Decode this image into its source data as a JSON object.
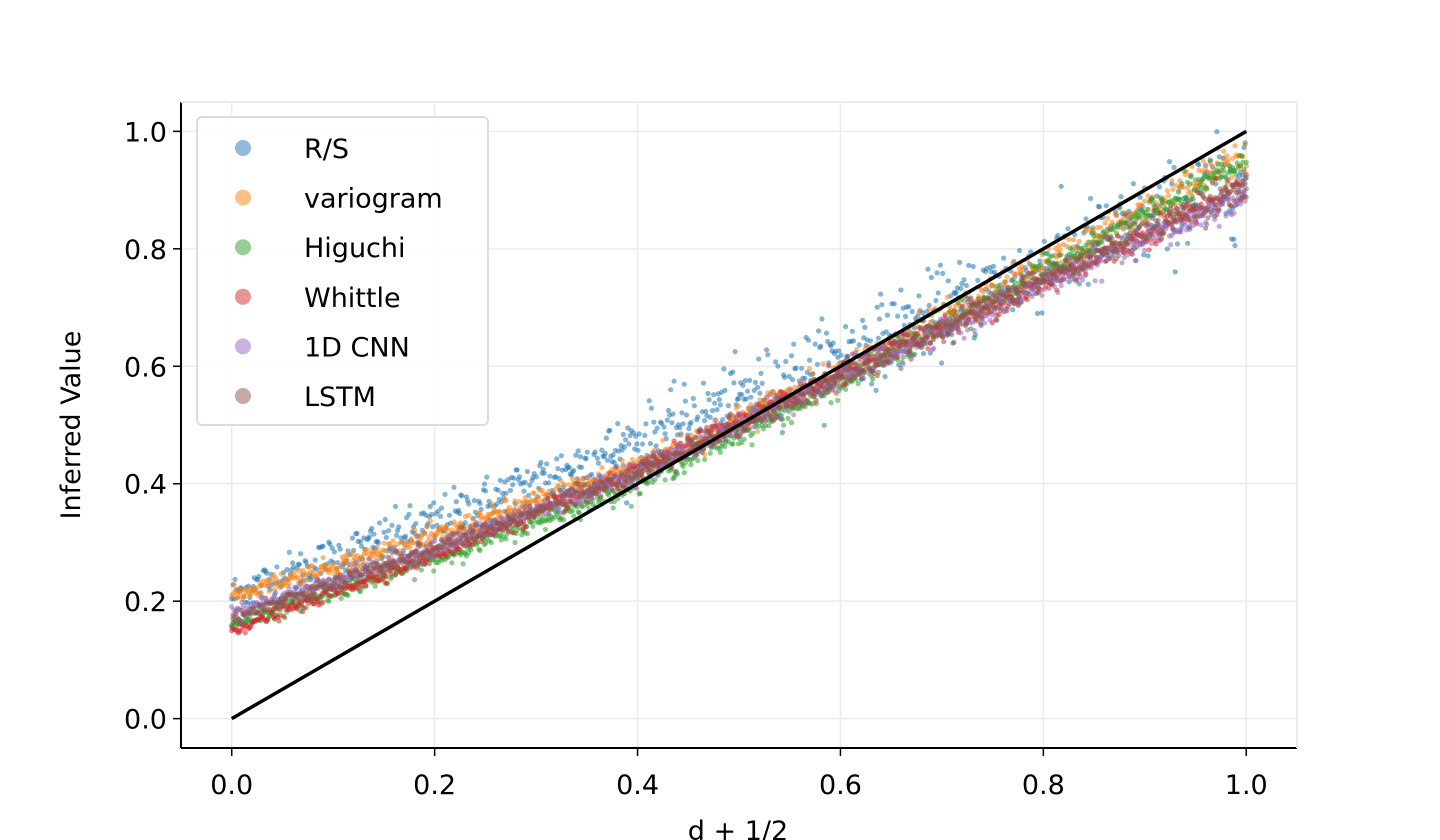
{
  "chart_data": {
    "type": "scatter",
    "title": "",
    "xlabel": "d + 1/2",
    "ylabel": "Inferred Value",
    "xlim": [
      -0.05,
      1.05
    ],
    "ylim": [
      -0.05,
      1.05
    ],
    "xticks": [
      "0.0",
      "0.2",
      "0.4",
      "0.6",
      "0.8",
      "1.0"
    ],
    "yticks": [
      "0.0",
      "0.2",
      "0.4",
      "0.6",
      "0.8",
      "1.0"
    ],
    "grid": true,
    "legend_position": "top-left",
    "reference_line": {
      "x": [
        0,
        1
      ],
      "y": [
        0,
        1
      ],
      "color": "#000000"
    },
    "series": [
      {
        "name": "R/S",
        "color": "#1f77b4",
        "trend": {
          "x": [
            0,
            0.2,
            0.4,
            0.6,
            0.8,
            1.0
          ],
          "y": [
            0.21,
            0.33,
            0.47,
            0.62,
            0.77,
            0.92
          ]
        },
        "spread": 0.03
      },
      {
        "name": "variogram",
        "color": "#ff7f0e",
        "trend": {
          "x": [
            0,
            0.2,
            0.4,
            0.6,
            0.8,
            1.0
          ],
          "y": [
            0.21,
            0.31,
            0.43,
            0.59,
            0.77,
            0.96
          ]
        },
        "spread": 0.012
      },
      {
        "name": "Higuchi",
        "color": "#2ca02c",
        "trend": {
          "x": [
            0,
            0.2,
            0.4,
            0.6,
            0.8,
            1.0
          ],
          "y": [
            0.16,
            0.27,
            0.4,
            0.57,
            0.76,
            0.95
          ]
        },
        "spread": 0.01
      },
      {
        "name": "Whittle",
        "color": "#d62728",
        "trend": {
          "x": [
            0,
            0.2,
            0.4,
            0.6,
            0.8,
            1.0
          ],
          "y": [
            0.15,
            0.28,
            0.42,
            0.59,
            0.74,
            0.91
          ]
        },
        "spread": 0.009
      },
      {
        "name": "1D CNN",
        "color": "#9467bd",
        "trend": {
          "x": [
            0,
            0.2,
            0.4,
            0.6,
            0.8,
            1.0
          ],
          "y": [
            0.18,
            0.29,
            0.42,
            0.58,
            0.74,
            0.89
          ]
        },
        "spread": 0.01
      },
      {
        "name": "LSTM",
        "color": "#8c564b",
        "trend": {
          "x": [
            0,
            0.2,
            0.4,
            0.6,
            0.8,
            1.0
          ],
          "y": [
            0.17,
            0.29,
            0.42,
            0.58,
            0.75,
            0.91
          ]
        },
        "spread": 0.01
      }
    ]
  }
}
